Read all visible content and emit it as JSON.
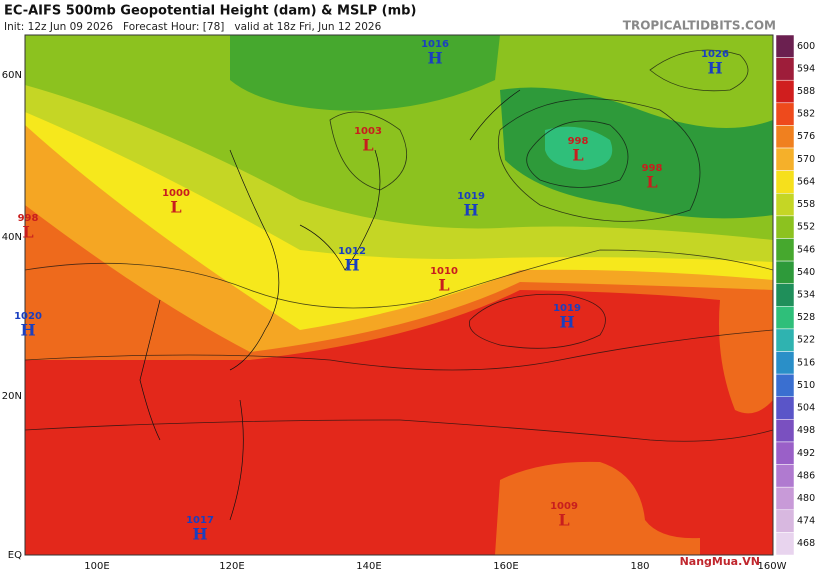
{
  "header": {
    "title": "EC-AIFS 500mb Geopotential Height (dam) & MSLP (mb)",
    "subtitle": "Init: 12z Jun 09 2026   Forecast Hour: [78]   valid at 18z Fri, Jun 12 2026",
    "source": "TROPICALTIDBITS.COM"
  },
  "colorbar": {
    "labels": [
      "600",
      "594",
      "588",
      "582",
      "576",
      "570",
      "564",
      "558",
      "552",
      "546",
      "540",
      "534",
      "528",
      "522",
      "516",
      "510",
      "504",
      "498",
      "492",
      "486",
      "480",
      "474",
      "468"
    ]
  },
  "lat_labels": [
    "60N",
    "40N",
    "20N",
    "EQ"
  ],
  "lon_labels": [
    "100E",
    "120E",
    "140E",
    "160E",
    "180",
    "160W"
  ],
  "pressure_centers": [
    {
      "kind": "H",
      "value": "1016"
    },
    {
      "kind": "L",
      "value": "1003"
    },
    {
      "kind": "H",
      "value": "1026"
    },
    {
      "kind": "L",
      "value": "998"
    },
    {
      "kind": "L",
      "value": "998"
    },
    {
      "kind": "L",
      "value": "1000"
    },
    {
      "kind": "H",
      "value": "1019"
    },
    {
      "kind": "L",
      "value": "998"
    },
    {
      "kind": "H",
      "value": "1012"
    },
    {
      "kind": "L",
      "value": "1010"
    },
    {
      "kind": "H",
      "value": "1019"
    },
    {
      "kind": "H",
      "value": "1020"
    },
    {
      "kind": "H",
      "value": "1017"
    },
    {
      "kind": "L",
      "value": "1009"
    }
  ],
  "watermark": "NangMua.VN"
}
